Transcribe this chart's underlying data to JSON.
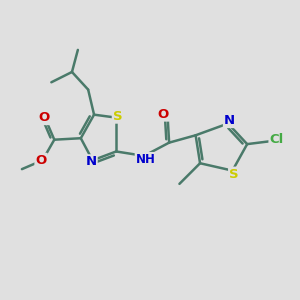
{
  "background_color": "#e0e0e0",
  "bond_color": "#4a7a6a",
  "bond_width": 1.8,
  "atom_colors": {
    "S": "#cccc00",
    "N": "#0000cc",
    "O": "#cc0000",
    "Cl": "#44aa44",
    "C": "#4a7a6a"
  },
  "font_size": 8.5,
  "fig_size": [
    3.0,
    3.0
  ],
  "dpi": 100,
  "xlim": [
    0,
    10
  ],
  "ylim": [
    0,
    10
  ]
}
